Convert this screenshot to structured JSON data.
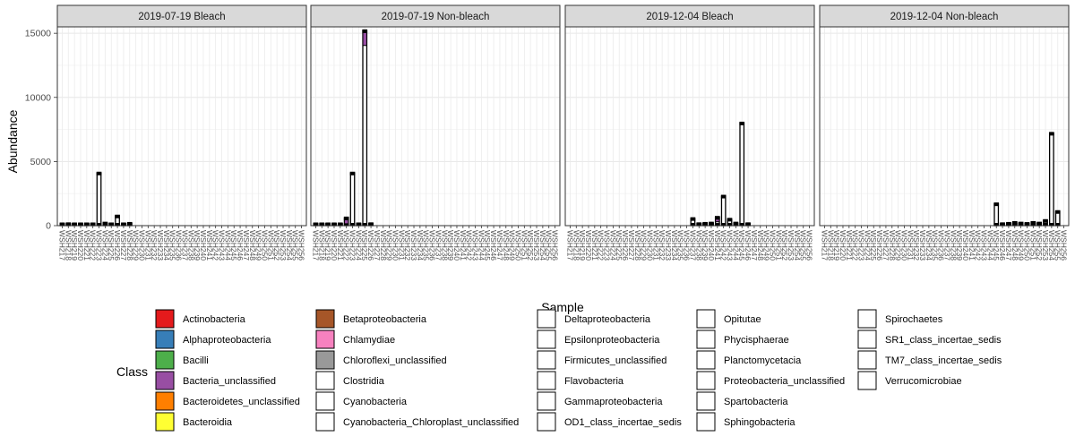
{
  "chart_data": {
    "type": "bar",
    "stacked": true,
    "xlabel": "Sample",
    "ylabel": "Abundance",
    "ylim": [
      0,
      15500
    ],
    "yticks": [
      0,
      5000,
      10000,
      15000
    ],
    "grid": true,
    "legend_position": "bottom",
    "legend_title": "Class",
    "categories": [
      "WSH217",
      "WSH218",
      "WSH219",
      "WSH220",
      "WSH221",
      "WSH222",
      "WSH223",
      "WSH224",
      "WSH225",
      "WSH226",
      "WSH227",
      "WSH228",
      "WSH229",
      "WSH230",
      "WSH231",
      "WSH232",
      "WSH233",
      "WSH234",
      "WSH235",
      "WSH236",
      "WSH237",
      "WSH238",
      "WSH239",
      "WSH240",
      "WSH241",
      "WSH242",
      "WSH243",
      "WSH244",
      "WSH245",
      "WSH246",
      "WSH247",
      "WSH248",
      "WSH249",
      "WSH250",
      "WSH251",
      "WSH252",
      "WSH253",
      "WSH254",
      "WSH255",
      "WSH256"
    ],
    "panels": [
      {
        "title": "2019-07-19 Bleach",
        "bars": [
          {
            "i": 0,
            "v": 100
          },
          {
            "i": 1,
            "v": 150
          },
          {
            "i": 2,
            "v": 130
          },
          {
            "i": 3,
            "v": 120
          },
          {
            "i": 4,
            "v": 90
          },
          {
            "i": 5,
            "v": 80
          },
          {
            "i": 6,
            "v": 4100
          },
          {
            "i": 7,
            "v": 200
          },
          {
            "i": 8,
            "v": 130
          },
          {
            "i": 9,
            "v": 750
          },
          {
            "i": 10,
            "v": 120
          },
          {
            "i": 11,
            "v": 180
          }
        ]
      },
      {
        "title": "2019-07-19 Non-bleach",
        "bars": [
          {
            "i": 0,
            "v": 100
          },
          {
            "i": 1,
            "v": 120
          },
          {
            "i": 2,
            "v": 90
          },
          {
            "i": 3,
            "v": 110
          },
          {
            "i": 4,
            "v": 130
          },
          {
            "i": 5,
            "v": 600,
            "purple": 300
          },
          {
            "i": 6,
            "v": 4100
          },
          {
            "i": 7,
            "v": 130
          },
          {
            "i": 8,
            "v": 15200,
            "purple": 1000
          },
          {
            "i": 9,
            "v": 150
          }
        ]
      },
      {
        "title": "2019-12-04 Bleach",
        "bars": [
          {
            "i": 20,
            "v": 550
          },
          {
            "i": 21,
            "v": 150
          },
          {
            "i": 22,
            "v": 180
          },
          {
            "i": 23,
            "v": 200
          },
          {
            "i": 24,
            "v": 650,
            "purple": 200
          },
          {
            "i": 25,
            "v": 2300
          },
          {
            "i": 26,
            "v": 500
          },
          {
            "i": 27,
            "v": 200
          },
          {
            "i": 28,
            "v": 8000
          },
          {
            "i": 29,
            "v": 150
          }
        ]
      },
      {
        "title": "2019-12-04 Non-bleach",
        "bars": [
          {
            "i": 28,
            "v": 1700
          },
          {
            "i": 29,
            "v": 150
          },
          {
            "i": 30,
            "v": 180
          },
          {
            "i": 31,
            "v": 250
          },
          {
            "i": 32,
            "v": 200
          },
          {
            "i": 33,
            "v": 170
          },
          {
            "i": 34,
            "v": 250
          },
          {
            "i": 35,
            "v": 200
          },
          {
            "i": 36,
            "v": 400
          },
          {
            "i": 37,
            "v": 7200
          },
          {
            "i": 38,
            "v": 1100
          }
        ]
      }
    ],
    "legend": [
      {
        "name": "Actinobacteria",
        "color": "#E41A1C"
      },
      {
        "name": "Alphaproteobacteria",
        "color": "#377EB8"
      },
      {
        "name": "Bacilli",
        "color": "#4DAF4A"
      },
      {
        "name": "Bacteria_unclassified",
        "color": "#984EA3"
      },
      {
        "name": "Bacteroidetes_unclassified",
        "color": "#FF7F00"
      },
      {
        "name": "Bacteroidia",
        "color": "#FFFF33"
      },
      {
        "name": "Betaproteobacteria",
        "color": "#A65628"
      },
      {
        "name": "Chlamydiae",
        "color": "#F781BF"
      },
      {
        "name": "Chloroflexi_unclassified",
        "color": "#999999"
      },
      {
        "name": "Clostridia",
        "color": "#FFFFFF"
      },
      {
        "name": "Cyanobacteria",
        "color": "#FFFFFF"
      },
      {
        "name": "Cyanobacteria_Chloroplast_unclassified",
        "color": "#FFFFFF"
      },
      {
        "name": "Deltaproteobacteria",
        "color": "#FFFFFF"
      },
      {
        "name": "Epsilonproteobacteria",
        "color": "#FFFFFF"
      },
      {
        "name": "Firmicutes_unclassified",
        "color": "#FFFFFF"
      },
      {
        "name": "Flavobacteria",
        "color": "#FFFFFF"
      },
      {
        "name": "Gammaproteobacteria",
        "color": "#FFFFFF"
      },
      {
        "name": "OD1_class_incertae_sedis",
        "color": "#FFFFFF"
      },
      {
        "name": "Opitutae",
        "color": "#FFFFFF"
      },
      {
        "name": "Phycisphaerae",
        "color": "#FFFFFF"
      },
      {
        "name": "Planctomycetacia",
        "color": "#FFFFFF"
      },
      {
        "name": "Proteobacteria_unclassified",
        "color": "#FFFFFF"
      },
      {
        "name": "Spartobacteria",
        "color": "#FFFFFF"
      },
      {
        "name": "Sphingobacteria",
        "color": "#FFFFFF"
      },
      {
        "name": "Spirochaetes",
        "color": "#FFFFFF"
      },
      {
        "name": "SR1_class_incertae_sedis",
        "color": "#FFFFFF"
      },
      {
        "name": "TM7_class_incertae_sedis",
        "color": "#FFFFFF"
      },
      {
        "name": "Verrucomicrobiae",
        "color": "#FFFFFF"
      }
    ]
  }
}
